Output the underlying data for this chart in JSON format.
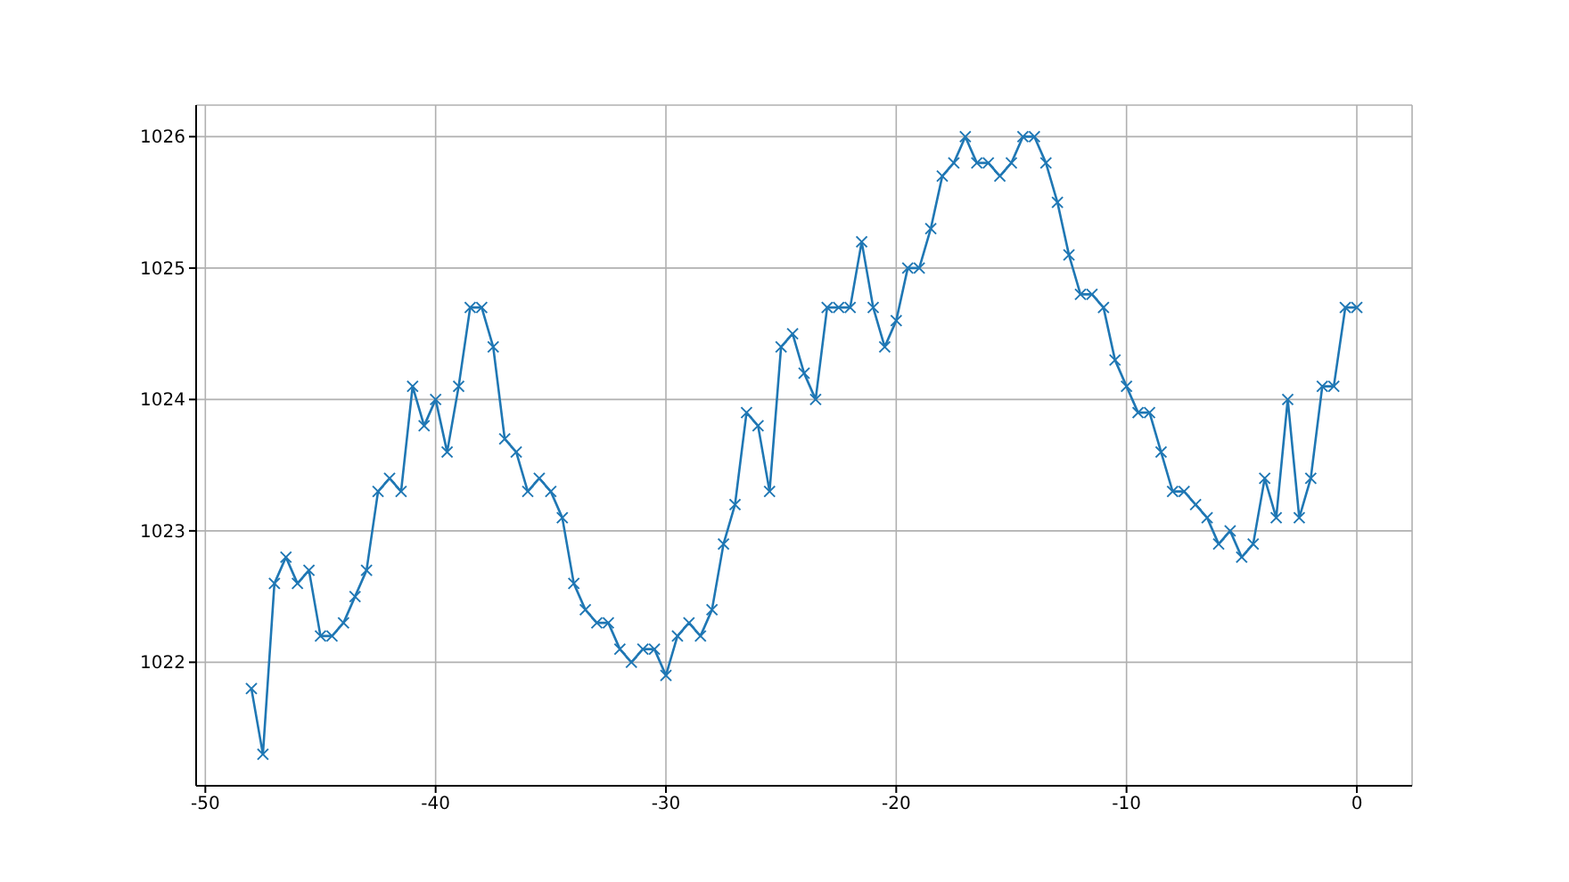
{
  "chart_data": {
    "type": "line",
    "x": [
      -48,
      -47.5,
      -47,
      -46.5,
      -46,
      -45.5,
      -45,
      -44.5,
      -44,
      -43.5,
      -43,
      -42.5,
      -42,
      -41.5,
      -41,
      -40.5,
      -40,
      -39.5,
      -39,
      -38.5,
      -38,
      -37.5,
      -37,
      -36.5,
      -36,
      -35.5,
      -35,
      -34.5,
      -34,
      -33.5,
      -33,
      -32.5,
      -32,
      -31.5,
      -31,
      -30.5,
      -30,
      -29.5,
      -29,
      -28.5,
      -28,
      -27.5,
      -27,
      -26.5,
      -26,
      -25.5,
      -25,
      -24.5,
      -24,
      -23.5,
      -23,
      -22.5,
      -22,
      -21.5,
      -21,
      -20.5,
      -20,
      -19.5,
      -19,
      -18.5,
      -18,
      -17.5,
      -17,
      -16.5,
      -16,
      -15.5,
      -15,
      -14.5,
      -14,
      -13.5,
      -13,
      -12.5,
      -12,
      -11.5,
      -11,
      -10.5,
      -10,
      -9.5,
      -9,
      -8.5,
      -8,
      -7.5,
      -7,
      -6.5,
      -6,
      -5.5,
      -5,
      -4.5,
      -4,
      -3.5,
      -3,
      -2.5,
      -2,
      -1.5,
      -1,
      -0.5,
      0
    ],
    "series": [
      {
        "color": "#1f77b4",
        "values": [
          1021.8,
          1021.3,
          1022.6,
          1022.8,
          1022.6,
          1022.7,
          1022.2,
          1022.2,
          1022.3,
          1022.5,
          1022.7,
          1023.3,
          1023.4,
          1023.3,
          1024.1,
          1023.8,
          1024.0,
          1023.6,
          1024.1,
          1024.7,
          1024.7,
          1024.4,
          1023.7,
          1023.6,
          1023.3,
          1023.4,
          1023.3,
          1023.1,
          1022.6,
          1022.4,
          1022.3,
          1022.3,
          1022.1,
          1022.0,
          1022.1,
          1022.1,
          1021.9,
          1022.2,
          1022.3,
          1022.2,
          1022.4,
          1022.9,
          1023.2,
          1023.9,
          1023.8,
          1023.3,
          1024.4,
          1024.5,
          1024.2,
          1024.0,
          1024.7,
          1024.7,
          1024.7,
          1025.2,
          1024.7,
          1024.4,
          1024.6,
          1025.0,
          1025.0,
          1025.3,
          1025.7,
          1025.8,
          1026.0,
          1025.8,
          1025.8,
          1025.7,
          1025.8,
          1026.0,
          1026.0,
          1025.8,
          1025.5,
          1025.1,
          1024.8,
          1024.8,
          1024.7,
          1024.3,
          1024.1,
          1023.9,
          1023.9,
          1023.6,
          1023.3,
          1023.3,
          1023.2,
          1023.1,
          1022.9,
          1023.0,
          1022.8,
          1022.9,
          1023.4,
          1023.1,
          1024.0,
          1023.1,
          1023.4,
          1024.1,
          1024.1,
          1024.7,
          1024.7
        ]
      }
    ],
    "xlim": [
      -50.4,
      2.4
    ],
    "xticks": [
      -50,
      -40,
      -30,
      -20,
      -10,
      0
    ],
    "ylim": [
      1021.06,
      1026.24
    ],
    "yticks": [
      1022,
      1023,
      1024,
      1025,
      1026
    ],
    "grid": true,
    "marker": "cross",
    "line_style": "solid"
  }
}
